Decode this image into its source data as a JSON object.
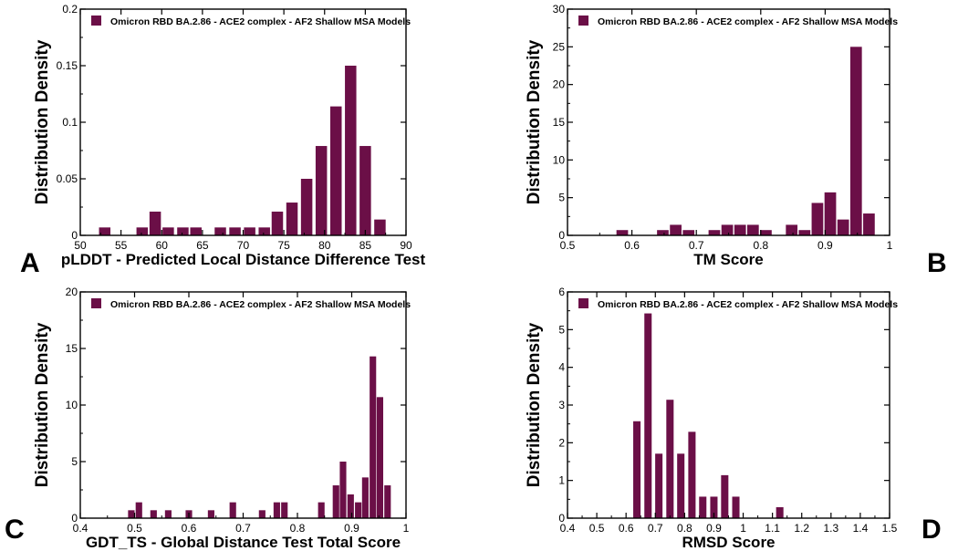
{
  "colors": {
    "bar": "#6b0f47",
    "axis": "#000000"
  },
  "chart_data": [
    {
      "id": "A",
      "type": "bar",
      "panel_label": "A",
      "xlabel": "pLDDT - Predicted Local Distance Difference Test",
      "ylabel": "Distribution Density",
      "legend": "Omicron RBD BA.2.86 - ACE2 complex - AF2 Shallow MSA Models",
      "xlim": [
        50,
        90
      ],
      "ylim": [
        0,
        0.2
      ],
      "xticks": [
        50,
        55,
        60,
        65,
        70,
        75,
        80,
        85,
        90
      ],
      "xtick_labels": [
        "50",
        "55",
        "60",
        "65",
        "70",
        "75",
        "80",
        "85",
        "90"
      ],
      "yticks": [
        0,
        0.05,
        0.1,
        0.15,
        0.2
      ],
      "ytick_labels": [
        "0",
        "0.05",
        "0.1",
        "0.15",
        "0.2"
      ],
      "bin_width": 1.4,
      "x": [
        53.0,
        55.8,
        57.6,
        59.2,
        60.8,
        62.6,
        64.2,
        67.2,
        69.0,
        70.8,
        72.6,
        74.2,
        76.0,
        77.8,
        79.6,
        81.4,
        83.2,
        85.0,
        86.8
      ],
      "values": [
        0.007,
        0.0,
        0.007,
        0.021,
        0.007,
        0.007,
        0.007,
        0.007,
        0.007,
        0.007,
        0.007,
        0.021,
        0.029,
        0.05,
        0.079,
        0.114,
        0.15,
        0.079,
        0.014
      ]
    },
    {
      "id": "B",
      "type": "bar",
      "panel_label": "B",
      "xlabel": "TM Score",
      "ylabel": "Distribution Density",
      "legend": "Omicron RBD BA.2.86 - ACE2 complex - AF2 Shallow MSA Models",
      "xlim": [
        0.5,
        1.0
      ],
      "ylim": [
        0,
        30
      ],
      "xticks": [
        0.5,
        0.6,
        0.7,
        0.8,
        0.9,
        1.0
      ],
      "xtick_labels": [
        "0.5",
        "0.6",
        "0.7",
        "0.8",
        "0.9",
        "1"
      ],
      "yticks": [
        0,
        5,
        10,
        15,
        20,
        25,
        30
      ],
      "ytick_labels": [
        "0",
        "5",
        "10",
        "15",
        "20",
        "25",
        "30"
      ],
      "bin_width": 0.018,
      "x": [
        0.585,
        0.648,
        0.668,
        0.688,
        0.728,
        0.748,
        0.768,
        0.788,
        0.808,
        0.848,
        0.868,
        0.888,
        0.908,
        0.928,
        0.948,
        0.968
      ],
      "values": [
        0.7,
        0.7,
        1.4,
        0.7,
        0.7,
        1.4,
        1.4,
        1.4,
        0.7,
        1.4,
        0.7,
        4.3,
        5.7,
        2.1,
        25.0,
        2.9
      ]
    },
    {
      "id": "C",
      "type": "bar",
      "panel_label": "C",
      "xlabel": "GDT_TS - Global Distance Test Total Score",
      "ylabel": "Distribution Density",
      "legend": "Omicron RBD BA.2.86 - ACE2 complex - AF2 Shallow MSA Models",
      "xlim": [
        0.4,
        1.0
      ],
      "ylim": [
        0,
        20
      ],
      "xticks": [
        0.4,
        0.5,
        0.6,
        0.7,
        0.8,
        0.9,
        1.0
      ],
      "xtick_labels": [
        "0.4",
        "0.5",
        "0.6",
        "0.7",
        "0.8",
        "0.9",
        "1"
      ],
      "yticks": [
        0,
        5,
        10,
        15,
        20
      ],
      "ytick_labels": [
        "0",
        "5",
        "10",
        "15",
        "20"
      ],
      "bin_width": 0.012,
      "x": [
        0.494,
        0.508,
        0.535,
        0.562,
        0.6,
        0.641,
        0.681,
        0.735,
        0.762,
        0.776,
        0.844,
        0.871,
        0.884,
        0.898,
        0.912,
        0.925,
        0.939,
        0.952,
        0.966,
        0.98
      ],
      "values": [
        0.7,
        1.4,
        0.7,
        0.7,
        0.7,
        0.7,
        1.4,
        0.7,
        1.4,
        1.4,
        1.4,
        2.9,
        5.0,
        2.1,
        1.4,
        3.6,
        14.3,
        10.7,
        2.9,
        0.0
      ]
    },
    {
      "id": "D",
      "type": "bar",
      "panel_label": "D",
      "xlabel": "RMSD Score",
      "ylabel": "Distribution Density",
      "legend": "Omicron RBD BA.2.86 - ACE2 complex - AF2 Shallow MSA Models",
      "xlim": [
        0.4,
        1.5
      ],
      "ylim": [
        0,
        6
      ],
      "xticks": [
        0.4,
        0.5,
        0.6,
        0.7,
        0.8,
        0.9,
        1.0,
        1.1,
        1.2,
        1.3,
        1.4,
        1.5
      ],
      "xtick_labels": [
        "0.4",
        "0.5",
        "0.6",
        "0.7",
        "0.8",
        "0.9",
        "1",
        "1.1",
        "1.2",
        "1.3",
        "1.4",
        "1.5"
      ],
      "yticks": [
        0,
        1,
        2,
        3,
        4,
        5,
        6
      ],
      "ytick_labels": [
        "0",
        "1",
        "2",
        "3",
        "4",
        "5",
        "6"
      ],
      "bin_width": 0.025,
      "x": [
        0.637,
        0.675,
        0.712,
        0.75,
        0.787,
        0.825,
        0.862,
        0.9,
        0.937,
        0.975,
        1.012,
        1.05,
        1.125
      ],
      "values": [
        2.57,
        5.43,
        1.71,
        3.14,
        1.71,
        2.29,
        0.57,
        0.57,
        1.14,
        0.57,
        0.0,
        0.0,
        0.29
      ]
    }
  ]
}
